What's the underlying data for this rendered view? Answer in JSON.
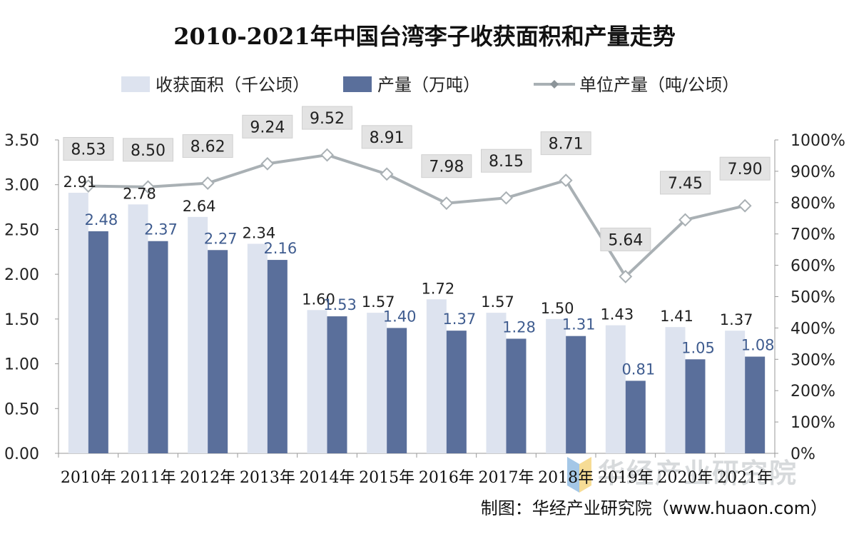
{
  "chart_data": {
    "type": "bar",
    "title": "2010-2021年中国台湾李子收获面积和产量走势",
    "categories": [
      "2010年",
      "2011年",
      "2012年",
      "2013年",
      "2014年",
      "2015年",
      "2016年",
      "2017年",
      "2018年",
      "2019年",
      "2020年",
      "2021年"
    ],
    "series": [
      {
        "name": "收获面积（千公顷）",
        "type": "bar",
        "axis": "left",
        "color": "#dde3ef",
        "values": [
          2.91,
          2.78,
          2.64,
          2.34,
          1.6,
          1.57,
          1.72,
          1.57,
          1.5,
          1.43,
          1.41,
          1.37
        ],
        "labels": [
          "2.91",
          "2.78",
          "2.64",
          "2.34",
          "1.60",
          "1.57",
          "1.72",
          "1.57",
          "1.50",
          "1.43",
          "1.41",
          "1.37"
        ]
      },
      {
        "name": "产量（万吨）",
        "type": "bar",
        "axis": "left",
        "color": "#5a6f9b",
        "values": [
          2.48,
          2.37,
          2.27,
          2.16,
          1.53,
          1.4,
          1.37,
          1.28,
          1.31,
          0.81,
          1.05,
          1.08
        ],
        "labels": [
          "2.48",
          "2.37",
          "2.27",
          "2.16",
          "1.53",
          "1.40",
          "1.37",
          "1.28",
          "1.31",
          "0.81",
          "1.05",
          "1.08"
        ]
      },
      {
        "name": "单位产量（吨/公顷）",
        "type": "line",
        "axis": "right",
        "color": "#a9b0b4",
        "values": [
          8.53,
          8.5,
          8.62,
          9.24,
          9.52,
          8.91,
          7.98,
          8.15,
          8.71,
          5.64,
          7.45,
          7.9
        ],
        "labels": [
          "8.53",
          "8.50",
          "8.62",
          "9.24",
          "9.52",
          "8.91",
          "7.98",
          "8.15",
          "8.71",
          "5.64",
          "7.45",
          "7.90"
        ]
      }
    ],
    "y_left": {
      "min": 0,
      "max": 3.5,
      "step": 0.5,
      "ticks": [
        "0.00",
        "0.50",
        "1.00",
        "1.50",
        "2.00",
        "2.50",
        "3.00",
        "3.50"
      ]
    },
    "y_right": {
      "min": 0,
      "max": 10,
      "step": 1,
      "ticks": [
        "0%",
        "100%",
        "200%",
        "300%",
        "400%",
        "500%",
        "600%",
        "700%",
        "800%",
        "900%",
        "1000%"
      ]
    },
    "legend_position": "top",
    "grid": false,
    "watermark": "华经产业研究院",
    "source": "制图：华经产业研究院（www.huaon.com）"
  }
}
